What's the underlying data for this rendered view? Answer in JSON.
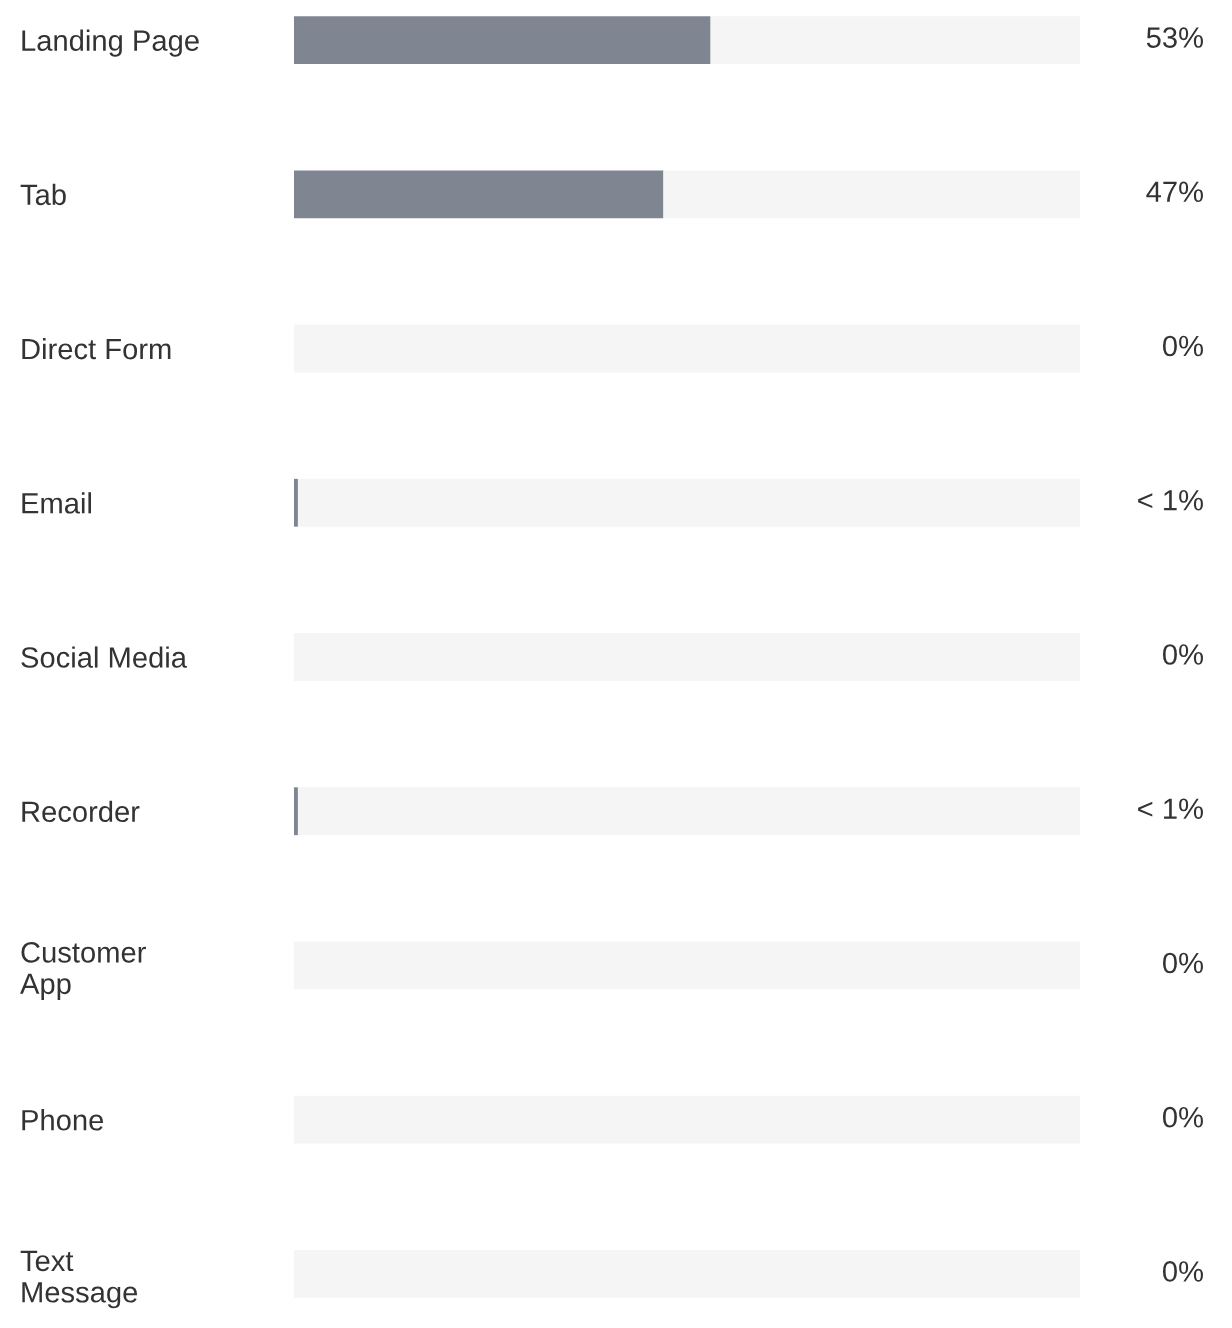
{
  "chart_data": {
    "type": "bar",
    "orientation": "horizontal",
    "stacked": true,
    "categories": [
      "Landing Page",
      "Tab",
      "Direct Form",
      "Email",
      "Social Media",
      "Recorder",
      "Customer\nApp",
      "Phone",
      "Text\nMessage"
    ],
    "series": [
      {
        "color": "#7f8591",
        "values": [
          53,
          47,
          0,
          0.5,
          0,
          0.5,
          0,
          0,
          0
        ],
        "value_labels": [
          "53%",
          "47%",
          "0%",
          "< 1%",
          "0%",
          "< 1%",
          "0%",
          "0%",
          "0%"
        ]
      },
      {
        "color": "#f5f5f5",
        "values": [
          47,
          53,
          100,
          99.5,
          100,
          99.5,
          100,
          100,
          100
        ]
      }
    ],
    "xlim": [
      0,
      100
    ],
    "tick_labels": "y",
    "grid": false,
    "legend": false
  }
}
